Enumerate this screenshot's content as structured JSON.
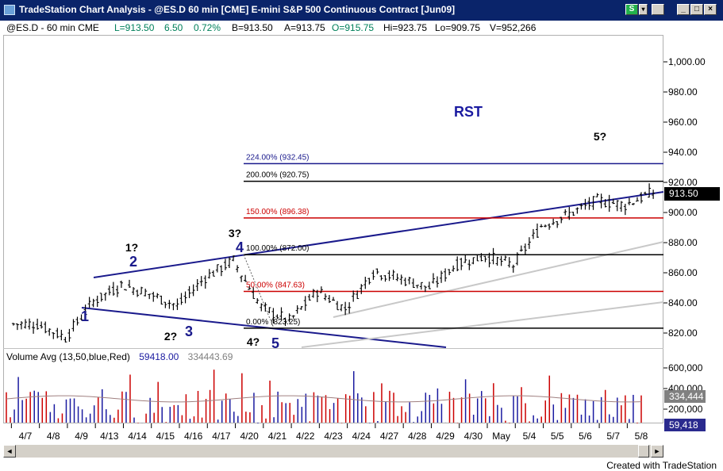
{
  "window": {
    "title": "TradeStation Chart Analysis - @ES.D  60 min  [CME] E-mini S&P 500 Continuous Contract [Jun09]",
    "s_button": "S",
    "dropdown_glyph": "▾",
    "minimize_glyph": "_",
    "maximize_glyph": "□",
    "close_glyph": "×"
  },
  "infobar": {
    "symbol": "@ES.D - 60 min  CME",
    "last": "L=913.50",
    "change": "6.50",
    "change_pct": "0.72%",
    "bid": "B=913.50",
    "ask": "A=913.75",
    "open": "O=915.75",
    "high": "Hi=923.75",
    "low": "Lo=909.75",
    "volume": "V=952,266"
  },
  "chart_data": {
    "type": "bar",
    "title": "",
    "price_axis": {
      "ticks": [
        "1,000.00",
        "980.00",
        "960.00",
        "940.00",
        "920.00",
        "900.00",
        "880.00",
        "860.00",
        "840.00",
        "820.00"
      ],
      "values": [
        1000,
        980,
        960,
        940,
        920,
        900,
        880,
        860,
        840,
        820
      ],
      "last_price": "913.50"
    },
    "date_axis": {
      "labels": [
        "4/7",
        "4/8",
        "4/9",
        "4/13",
        "4/14",
        "4/15",
        "4/16",
        "4/17",
        "4/20",
        "4/21",
        "4/22",
        "4/23",
        "4/24",
        "4/27",
        "4/28",
        "4/29",
        "4/30",
        "May",
        "5/4",
        "5/5",
        "5/6",
        "5/7",
        "5/8"
      ]
    },
    "session_closes": [
      826,
      817,
      841,
      852,
      846,
      838,
      857,
      868,
      837,
      828,
      848,
      836,
      861,
      856,
      850,
      866,
      871,
      865,
      891,
      899,
      908,
      905,
      913.5
    ],
    "fib_levels": [
      {
        "label": "224.00% (932.45)",
        "price": 932.45,
        "color": "#1a1a8c"
      },
      {
        "label": "200.00% (920.75)",
        "price": 920.75,
        "color": "#000000"
      },
      {
        "label": "150.00% (896.38)",
        "price": 896.38,
        "color": "#cc0000"
      },
      {
        "label": "100.00% (872.00)",
        "price": 872.0,
        "color": "#000000"
      },
      {
        "label": "50.00% (847.63)",
        "price": 847.63,
        "color": "#cc0000"
      },
      {
        "label": "0.00% (823.25)",
        "price": 823.25,
        "color": "#000000"
      }
    ],
    "wave_labels": [
      {
        "text": "1",
        "color": "#1a1a8c"
      },
      {
        "text": "1?",
        "color": "#000000"
      },
      {
        "text": "2",
        "color": "#1a1a8c"
      },
      {
        "text": "2?",
        "color": "#000000"
      },
      {
        "text": "3",
        "color": "#1a1a8c"
      },
      {
        "text": "3?",
        "color": "#000000"
      },
      {
        "text": "4",
        "color": "#1a1a8c"
      },
      {
        "text": "4?",
        "color": "#000000"
      },
      {
        "text": "5",
        "color": "#1a1a8c"
      },
      {
        "text": "5?",
        "color": "#000000"
      }
    ],
    "annotation": "RST",
    "volume": {
      "indicator": "Volume Avg (13,50,blue,Red)",
      "value1": "59418.00",
      "value2": "334443.69",
      "axis_ticks": [
        "600,000",
        "400,000",
        "200,000"
      ],
      "axis_values": [
        600000,
        400000,
        200000
      ],
      "badge_avg": "334,444",
      "badge_last": "59,418"
    }
  },
  "scrollbar": {
    "left_glyph": "◄",
    "right_glyph": "►"
  },
  "footer": "Created with TradeStation"
}
